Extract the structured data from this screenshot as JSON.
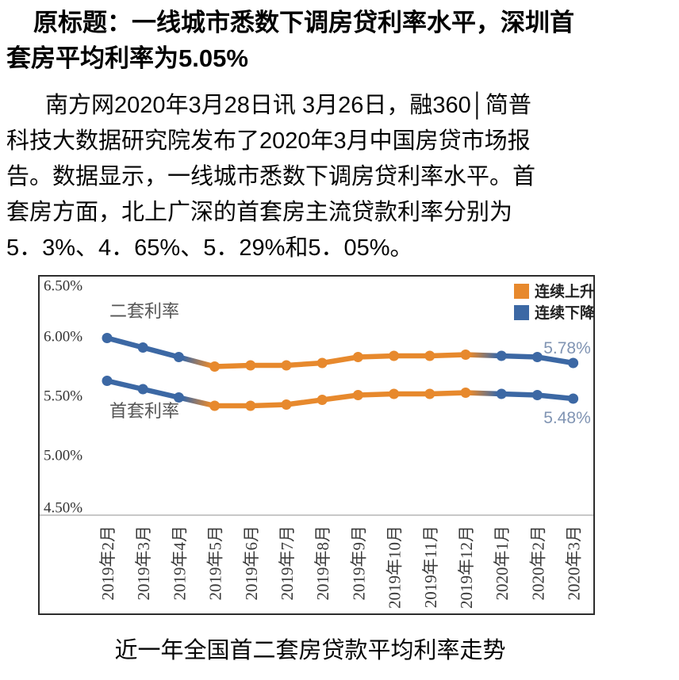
{
  "article": {
    "title_lines": [
      "原标题：一线城市悉数下调房贷利率水平，深圳首",
      "套房平均利率为5.05%"
    ],
    "body_lines": [
      "南方网2020年3月28日讯 3月26日，融360│简普",
      "科技大数据研究院发布了2020年3月中国房贷市场报",
      "告。数据显示，一线城市悉数下调房贷利率水平。首",
      "套房方面，北上广深的首套房主流贷款利率分别为",
      "5．3%、4．65%、5．29%和5．05%。"
    ],
    "caption": "近一年全国首二套房贷款平均利率走势"
  },
  "chart_data": {
    "type": "line",
    "title": "近一年全国首二套房贷款平均利率走势",
    "categories": [
      "2019年2月",
      "2019年3月",
      "2019年4月",
      "2019年5月",
      "2019年6月",
      "2019年7月",
      "2019年8月",
      "2019年9月",
      "2019年10月",
      "2019年11月",
      "2019年12月",
      "2020年1月",
      "2020年2月",
      "2020年3月"
    ],
    "series": [
      {
        "name": "二套利率",
        "values": [
          5.99,
          5.91,
          5.83,
          5.75,
          5.76,
          5.76,
          5.78,
          5.83,
          5.84,
          5.84,
          5.85,
          5.84,
          5.83,
          5.78
        ],
        "end_label": "5.78%"
      },
      {
        "name": "首套利率",
        "values": [
          5.63,
          5.56,
          5.49,
          5.42,
          5.42,
          5.43,
          5.47,
          5.51,
          5.52,
          5.52,
          5.53,
          5.52,
          5.51,
          5.48
        ],
        "end_label": "5.48%"
      }
    ],
    "phases": [
      "down",
      "down",
      "down",
      "up",
      "up",
      "up",
      "up",
      "up",
      "up",
      "up",
      "up",
      "down",
      "down",
      "down"
    ],
    "legend": [
      {
        "label": "连续上升",
        "phase": "up"
      },
      {
        "label": "连续下降",
        "phase": "down"
      }
    ],
    "y_ticks": [
      {
        "label": "6.50%",
        "value": 6.5
      },
      {
        "label": "6.00%",
        "value": 6.0
      },
      {
        "label": "5.50%",
        "value": 5.5
      },
      {
        "label": "5.00%",
        "value": 5.0
      },
      {
        "label": "4.50%",
        "value": 4.5
      }
    ],
    "ylim": [
      4.5,
      6.5
    ],
    "grid": "single baseline at 4.50%",
    "legend_position": "top-right inside plot",
    "colors": {
      "up": "#E7892D",
      "down": "#3C68A4",
      "value_label": "#8094B3",
      "series_name": "#555555",
      "tick": "#333333",
      "grid": "#C8C8C8",
      "legend_text": "#222222"
    }
  }
}
